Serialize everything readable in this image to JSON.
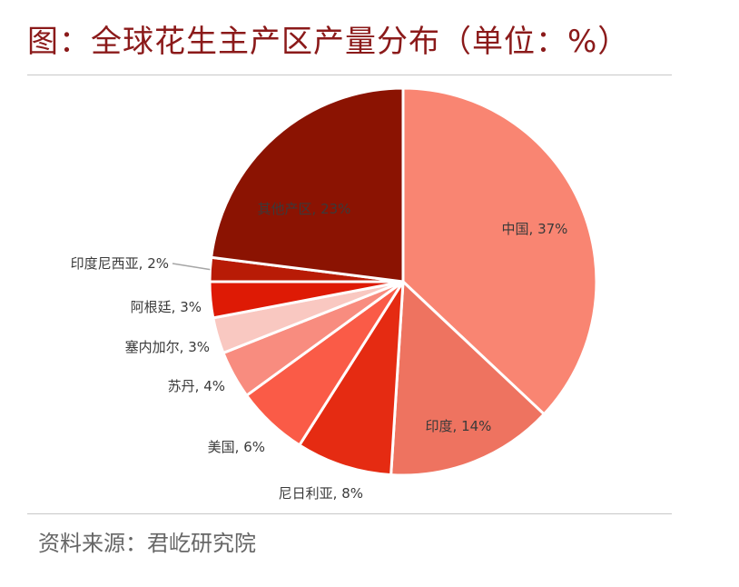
{
  "title": "图：全球花生主产区产量分布（单位：%）",
  "source": "资料来源：君屹研究院",
  "chart_data": {
    "type": "pie",
    "title": "图：全球花生主产区产量分布（单位：%）",
    "start_angle_deg": 0,
    "direction": "clockwise",
    "slices": [
      {
        "label": "中国",
        "value": 37,
        "text": "中国, 37%",
        "color": "#f98572"
      },
      {
        "label": "印度",
        "value": 14,
        "text": "印度, 14%",
        "color": "#ee7360"
      },
      {
        "label": "尼日利亚",
        "value": 8,
        "text": "尼日利亚, 8%",
        "color": "#e52b12"
      },
      {
        "label": "美国",
        "value": 6,
        "text": "美国, 6%",
        "color": "#fa5b47"
      },
      {
        "label": "苏丹",
        "value": 4,
        "text": "苏丹, 4%",
        "color": "#f88c7f"
      },
      {
        "label": "塞内加尔",
        "value": 3,
        "text": "塞内加尔, 3%",
        "color": "#f9c8c1"
      },
      {
        "label": "阿根廷",
        "value": 3,
        "text": "阿根廷, 3%",
        "color": "#de1a05"
      },
      {
        "label": "印度尼西亚",
        "value": 2,
        "text": "印度尼西亚, 2%",
        "color": "#b81b06"
      },
      {
        "label": "其他产区",
        "value": 23,
        "text": "其他产区, 23%",
        "color": "#8b1302"
      }
    ]
  }
}
